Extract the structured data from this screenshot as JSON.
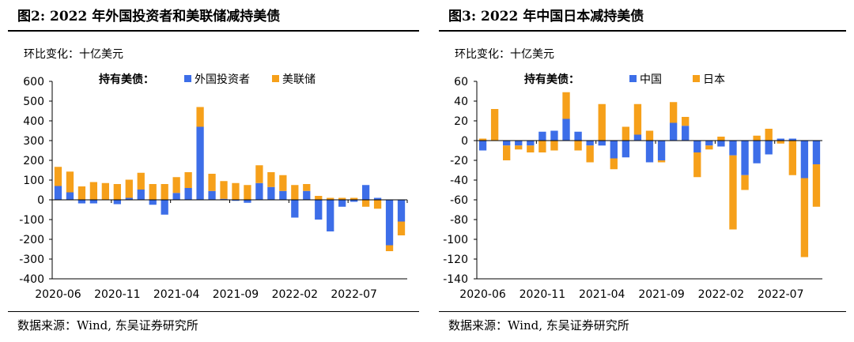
{
  "colors": {
    "blue": "#3d6ee8",
    "orange": "#f6a01a",
    "axis": "#000000"
  },
  "chart_data": [
    {
      "type": "bar",
      "stacked": true,
      "title": "图2:  2022 年外国投资者和美联储减持美债",
      "unit_label": "环比变化：十亿美元",
      "legend_title": "持有美债：",
      "source": "数据来源：Wind, 东吴证券研究所",
      "ylim": [
        -400,
        600
      ],
      "yticks": [
        "600",
        "500",
        "400",
        "300",
        "200",
        "100",
        "0",
        "-100",
        "-200",
        "-300",
        "-400"
      ],
      "ytick_values": [
        600,
        500,
        400,
        300,
        200,
        100,
        0,
        -100,
        -200,
        -300,
        -400
      ],
      "xtick_labels": [
        {
          "index": 0,
          "label": "2020-06"
        },
        {
          "index": 5,
          "label": "2020-11"
        },
        {
          "index": 10,
          "label": "2021-04"
        },
        {
          "index": 15,
          "label": "2021-09"
        },
        {
          "index": 20,
          "label": "2022-02"
        },
        {
          "index": 25,
          "label": "2022-07"
        }
      ],
      "series": [
        {
          "name": "外国投资者",
          "color_key": "blue",
          "values": [
            70,
            38,
            -18,
            -18,
            0,
            -22,
            10,
            52,
            -25,
            -75,
            35,
            60,
            370,
            45,
            5,
            -5,
            -15,
            85,
            65,
            45,
            -90,
            45,
            -100,
            -160,
            -35,
            -10,
            75,
            10,
            -230,
            -110
          ]
        },
        {
          "name": "美联储",
          "color_key": "orange",
          "values": [
            97,
            105,
            68,
            90,
            85,
            80,
            92,
            85,
            80,
            80,
            80,
            80,
            100,
            87,
            90,
            85,
            75,
            90,
            75,
            80,
            75,
            35,
            20,
            10,
            10,
            10,
            -35,
            -45,
            -30,
            -70
          ]
        }
      ]
    },
    {
      "type": "bar",
      "stacked": true,
      "title": "图3:  2022 年中国日本减持美债",
      "unit_label": "环比变化：十亿美元",
      "legend_title": "持有美债：",
      "source": "数据来源：Wind, 东吴证券研究所",
      "ylim": [
        -140,
        60
      ],
      "yticks": [
        "60",
        "40",
        "20",
        "0",
        "-20",
        "-40",
        "-60",
        "-80",
        "-100",
        "-120",
        "-140"
      ],
      "ytick_values": [
        60,
        40,
        20,
        0,
        -20,
        -40,
        -60,
        -80,
        -100,
        -120,
        -140
      ],
      "xtick_labels": [
        {
          "index": 0,
          "label": "2020-06"
        },
        {
          "index": 5,
          "label": "2020-11"
        },
        {
          "index": 10,
          "label": "2021-04"
        },
        {
          "index": 15,
          "label": "2021-09"
        },
        {
          "index": 20,
          "label": "2022-02"
        },
        {
          "index": 25,
          "label": "2022-07"
        }
      ],
      "series": [
        {
          "name": "中国",
          "color_key": "blue",
          "values": [
            -10,
            0,
            -5,
            -5,
            -5,
            9,
            10,
            22,
            9,
            -5,
            -5,
            -18,
            -17,
            6,
            -22,
            -20,
            18,
            15,
            -12,
            -5,
            -6,
            -15,
            -35,
            -23,
            -14,
            2,
            2,
            -38,
            -24
          ]
        },
        {
          "name": "日本",
          "color_key": "orange",
          "values": [
            2,
            32,
            -15,
            -4,
            -7,
            -12,
            -10,
            27,
            -10,
            -17,
            37,
            -11,
            14,
            31,
            10,
            -2,
            21,
            9,
            -25,
            -4,
            4,
            -75,
            -15,
            5,
            12,
            -3,
            -35,
            -80,
            -43
          ]
        }
      ]
    }
  ]
}
